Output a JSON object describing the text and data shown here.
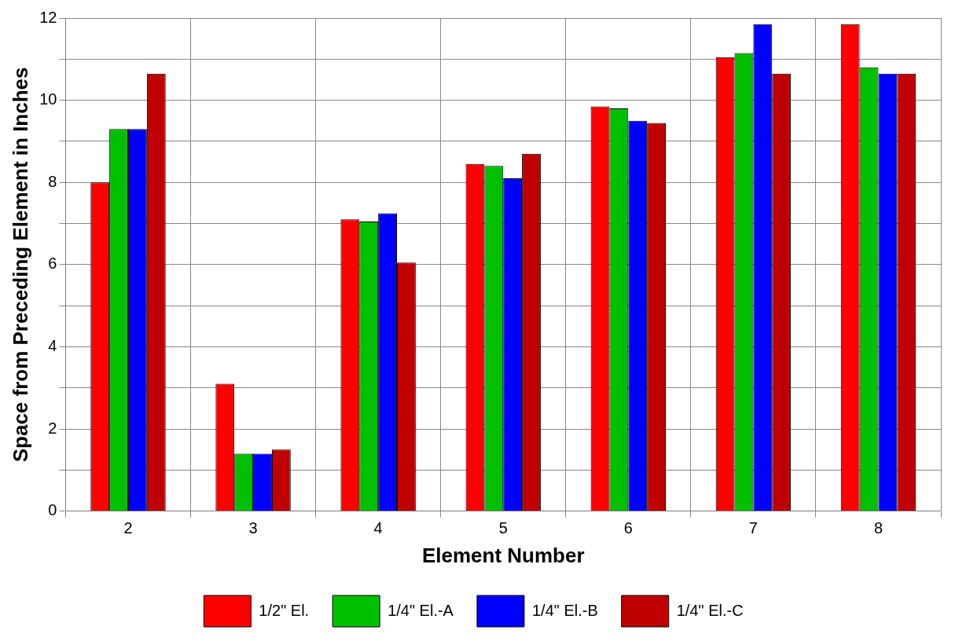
{
  "chart_data": {
    "type": "bar",
    "xlabel": "Element Number",
    "ylabel": "Space from Preceding Element in Inches",
    "categories": [
      "2",
      "3",
      "4",
      "5",
      "6",
      "7",
      "8"
    ],
    "series": [
      {
        "name": "1/2\" El.",
        "color": "#ff0000",
        "values": [
          8.0,
          3.1,
          7.1,
          8.45,
          9.85,
          11.05,
          11.85
        ]
      },
      {
        "name": "1/4\" El.-A",
        "color": "#00c000",
        "values": [
          9.3,
          1.4,
          7.05,
          8.4,
          9.8,
          11.15,
          10.8
        ]
      },
      {
        "name": "1/4\" El.-B",
        "color": "#0000ff",
        "values": [
          9.3,
          1.4,
          7.25,
          8.1,
          9.5,
          11.85,
          10.65
        ]
      },
      {
        "name": "1/4\" El.-C",
        "color": "#c00000",
        "values": [
          10.65,
          1.5,
          6.05,
          8.7,
          9.45,
          10.65,
          10.65
        ]
      }
    ],
    "ylim": [
      0,
      12
    ],
    "yticks": [
      0,
      {
        "value": 1,
        "label": null
      },
      2,
      {
        "value": 3,
        "label": null
      },
      4,
      {
        "value": 5,
        "label": null
      },
      6,
      {
        "value": 7,
        "label": null
      },
      8,
      {
        "value": 9,
        "label": null
      },
      10,
      {
        "value": 11,
        "label": null
      },
      12
    ],
    "grid": true,
    "legend": "bottom"
  }
}
